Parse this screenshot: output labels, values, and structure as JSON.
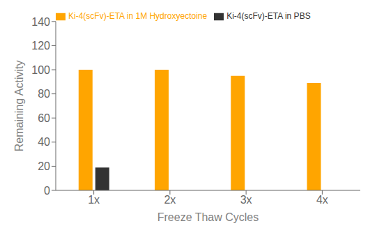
{
  "chart_data": {
    "type": "bar",
    "categories": [
      "1x",
      "2x",
      "3x",
      "4x"
    ],
    "series": [
      {
        "name": "Ki-4(scFv)-ETA in 1M Hydroxyectoine",
        "color": "#FFA500",
        "values": [
          100,
          100,
          95,
          89
        ]
      },
      {
        "name": "Ki-4(scFv)-ETA in PBS",
        "color": "#333333",
        "values": [
          19,
          0,
          0,
          0
        ]
      }
    ],
    "xlabel": "Freeze Thaw Cycles",
    "ylabel": "Remaining Activity",
    "ylim": [
      0,
      140
    ],
    "yticks": [
      0,
      20,
      40,
      60,
      80,
      100,
      120,
      140
    ],
    "grid": false,
    "legend": "upper left"
  }
}
